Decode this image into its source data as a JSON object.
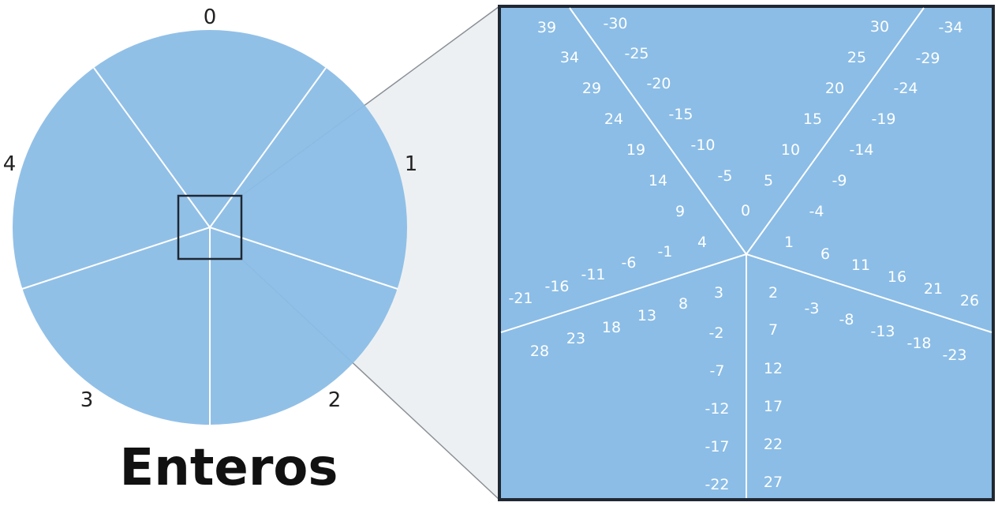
{
  "caption": "Enteros",
  "colors": {
    "disk": "#8bbde6",
    "zoom_fill": "#8bbde6",
    "zoom_border": "#1f2833",
    "lines": "#ffffff",
    "connector_fill": "#dfe3e8",
    "connector_stroke": "#8a8f96"
  },
  "circle_labels": [
    "0",
    "1",
    "2",
    "3",
    "4"
  ],
  "zoom_labels": [
    {
      "text": "39"
    },
    {
      "text": "34"
    },
    {
      "text": "29"
    },
    {
      "text": "24"
    },
    {
      "text": "19"
    },
    {
      "text": "14"
    },
    {
      "text": "9"
    },
    {
      "text": "4"
    },
    {
      "text": "-30"
    },
    {
      "text": "-25"
    },
    {
      "text": "-20"
    },
    {
      "text": "-15"
    },
    {
      "text": "-10"
    },
    {
      "text": "-5"
    },
    {
      "text": "0"
    },
    {
      "text": "30"
    },
    {
      "text": "25"
    },
    {
      "text": "20"
    },
    {
      "text": "15"
    },
    {
      "text": "10"
    },
    {
      "text": "5"
    },
    {
      "text": "-34"
    },
    {
      "text": "-29"
    },
    {
      "text": "-24"
    },
    {
      "text": "-19"
    },
    {
      "text": "-14"
    },
    {
      "text": "-9"
    },
    {
      "text": "-4"
    },
    {
      "text": "1"
    },
    {
      "text": "6"
    },
    {
      "text": "11"
    },
    {
      "text": "16"
    },
    {
      "text": "21"
    },
    {
      "text": "26"
    },
    {
      "text": "2"
    },
    {
      "text": "-3"
    },
    {
      "text": "-8"
    },
    {
      "text": "-13"
    },
    {
      "text": "-18"
    },
    {
      "text": "-23"
    },
    {
      "text": "3"
    },
    {
      "text": "-2"
    },
    {
      "text": "-7"
    },
    {
      "text": "-12"
    },
    {
      "text": "-17"
    },
    {
      "text": "-22"
    },
    {
      "text": "7"
    },
    {
      "text": "12"
    },
    {
      "text": "17"
    },
    {
      "text": "22"
    },
    {
      "text": "27"
    },
    {
      "text": "-1"
    },
    {
      "text": "-6"
    },
    {
      "text": "-11"
    },
    {
      "text": "-16"
    },
    {
      "text": "-21"
    },
    {
      "text": "8"
    },
    {
      "text": "13"
    },
    {
      "text": "18"
    },
    {
      "text": "23"
    },
    {
      "text": "28"
    }
  ]
}
